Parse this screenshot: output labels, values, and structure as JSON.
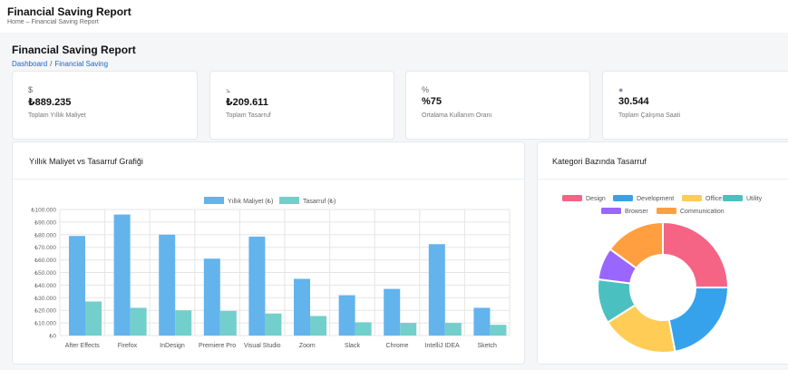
{
  "topbar": {
    "title": "Financial Saving Report",
    "breadcrumb": "Home  –  Financial Saving Report"
  },
  "page": {
    "title": "Financial Saving Report",
    "breadcrumb": [
      {
        "label": "Dashboard"
      },
      {
        "label": "Financial Saving"
      }
    ],
    "breadcrumb_sep": "/"
  },
  "stats": [
    {
      "icon": "dollar-icon",
      "glyph": "$",
      "value": "₺889.235",
      "label": "Toplam Yıllık Maliyet"
    },
    {
      "icon": "chart-line-icon",
      "glyph": "⦣",
      "value": "₺209.611",
      "label": "Toplam Tasarruf"
    },
    {
      "icon": "percent-icon",
      "glyph": "%",
      "value": "%75",
      "label": "Ortalama Kullanım Oranı"
    },
    {
      "icon": "clock-icon",
      "glyph": "●",
      "value": "30.544",
      "label": "Toplam Çalışma Saati"
    }
  ],
  "bar_panel": {
    "title": "Yıllık Maliyet vs Tasarruf Grafiği"
  },
  "pie_panel": {
    "title": "Kategori Bazında Tasarruf"
  },
  "colors": {
    "cost": "#63b3ed",
    "saving": "#72cfcb"
  },
  "chart_data": [
    {
      "type": "bar",
      "categories": [
        "After Effects",
        "Firefox",
        "InDesign",
        "Premiere Pro",
        "Visual Studio",
        "Zoom",
        "Slack",
        "Chrome",
        "IntelliJ IDEA",
        "Sketch"
      ],
      "series": [
        {
          "name": "Yıllık Maliyet (₺)",
          "color": "#63b3ed",
          "values": [
            79000,
            96000,
            80000,
            61000,
            78500,
            45000,
            32000,
            37000,
            72500,
            22000
          ]
        },
        {
          "name": "Tasarruf (₺)",
          "color": "#72cfcb",
          "values": [
            27000,
            22000,
            20000,
            19500,
            17500,
            15500,
            10500,
            10000,
            10000,
            8500
          ]
        }
      ],
      "yticks": [
        "₺0",
        "₺10.000",
        "₺20.000",
        "₺30.000",
        "₺40.000",
        "₺50.000",
        "₺60.000",
        "₺70.000",
        "₺80.000",
        "₺90.000",
        "₺100.000"
      ],
      "ylim": [
        0,
        100000
      ],
      "legend": "top",
      "grid": true
    },
    {
      "type": "pie",
      "donut": true,
      "legend": "top",
      "slices": [
        {
          "label": "Design",
          "value": 25,
          "color": "#f56484"
        },
        {
          "label": "Development",
          "value": 22,
          "color": "#36a2eb"
        },
        {
          "label": "Office",
          "value": 19,
          "color": "#ffcd56"
        },
        {
          "label": "Utility",
          "value": 11,
          "color": "#4bc0c0"
        },
        {
          "label": "Browser",
          "value": 8,
          "color": "#9966ff"
        },
        {
          "label": "Communication",
          "value": 15,
          "color": "#ff9f40"
        }
      ]
    }
  ]
}
